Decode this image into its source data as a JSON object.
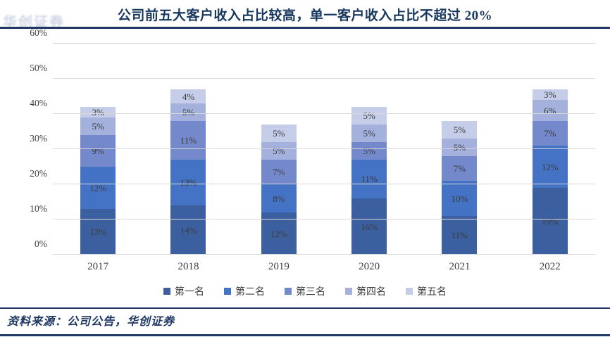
{
  "header": {
    "title": "公司前五大客户收入占比较高，单一客户收入占比不超过 20%",
    "title_color": "#17375e"
  },
  "watermark": {
    "text": "华创证券"
  },
  "footer": {
    "source_text": "资料来源：公司公告，华创证券",
    "color": "#1f3864"
  },
  "chart_data": {
    "type": "bar",
    "stacked": true,
    "title": "公司前五大客户收入占比较高，单一客户收入占比不超过 20%",
    "categories": [
      "2017",
      "2018",
      "2019",
      "2020",
      "2021",
      "2022"
    ],
    "series": [
      {
        "name": "第一名",
        "color": "#3c5f9f",
        "values": [
          13,
          14,
          12,
          16,
          11,
          19
        ]
      },
      {
        "name": "第二名",
        "color": "#4472c4",
        "values": [
          12,
          13,
          8,
          11,
          10,
          12
        ]
      },
      {
        "name": "第三名",
        "color": "#7389cb",
        "values": [
          9,
          11,
          7,
          5,
          7,
          7
        ]
      },
      {
        "name": "第四名",
        "color": "#a3b1dc",
        "values": [
          5,
          5,
          5,
          5,
          5,
          6
        ]
      },
      {
        "name": "第五名",
        "color": "#c5cde9",
        "values": [
          3,
          4,
          5,
          5,
          5,
          3
        ]
      }
    ],
    "xlabel": "",
    "ylabel": "",
    "ylim": [
      0,
      60
    ],
    "y_ticks": [
      "0%",
      "10%",
      "20%",
      "30%",
      "40%",
      "50%",
      "60%"
    ],
    "grid": true,
    "gridline_color": "#d9d9d9",
    "legend_position": "bottom",
    "data_label_suffix": "%"
  }
}
